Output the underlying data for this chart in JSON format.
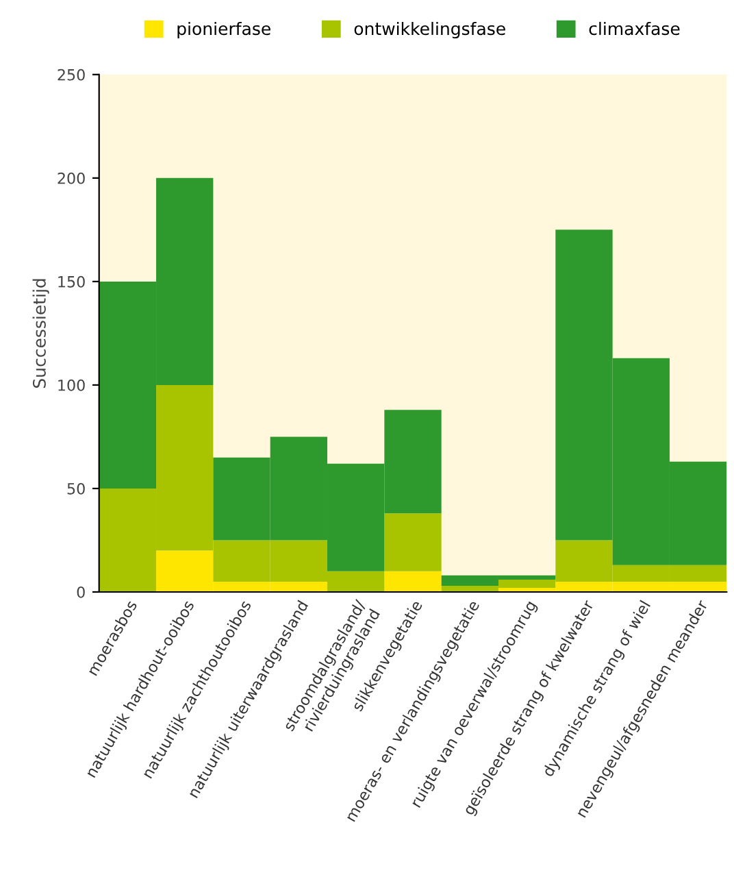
{
  "chart_data": {
    "type": "bar",
    "stacked": true,
    "ylabel": "Successietijd",
    "categories": [
      "moerasbos",
      "natuurlijk hardhout-ooibos",
      "natuurlijk zachthoutooibos",
      "natuurlijk uiterwaardgrasland",
      "stroomdalgrasland/\nrivierduingrasland",
      "slikkenvegetatie",
      "moeras- en verlandingsvegetatie",
      "ruigte van oeverwal/stroomrug",
      "geïsoleerde strang of kwelwater",
      "dynamische strang of wiel",
      "nevengeul/afgesneden meander"
    ],
    "series": [
      {
        "name": "pionierfase",
        "color": "#ffe600",
        "values": [
          0,
          20,
          5,
          5,
          0,
          10,
          0,
          2,
          5,
          5,
          5
        ]
      },
      {
        "name": "ontwikkelingsfase",
        "color": "#a8c400",
        "values": [
          50,
          80,
          20,
          20,
          10,
          28,
          3,
          4,
          20,
          8,
          8
        ]
      },
      {
        "name": "climaxfase",
        "color": "#2e9a2e",
        "values": [
          100,
          100,
          40,
          50,
          52,
          50,
          5,
          2,
          150,
          100,
          50
        ]
      }
    ],
    "ylim": [
      0,
      250
    ],
    "yticks": [
      0,
      50,
      100,
      150,
      200,
      250
    ],
    "grid": false,
    "legend": "top"
  }
}
